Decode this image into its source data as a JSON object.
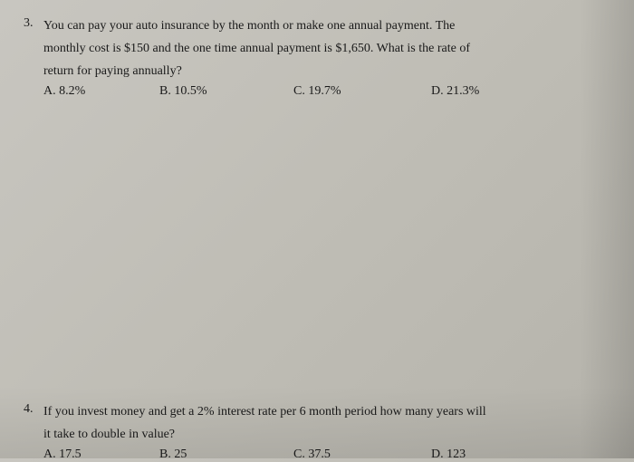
{
  "q3": {
    "number": "3.",
    "text_line1": "You can pay your auto insurance by the month or make one annual payment.  The",
    "text_line2": "monthly cost is $150 and the one time annual payment is $1,650.  What is the rate of",
    "text_line3": "return for paying annually?",
    "options": {
      "a": "A. 8.2%",
      "b": "B. 10.5%",
      "c": "C. 19.7%",
      "d": "D. 21.3%"
    }
  },
  "q4": {
    "number": "4.",
    "text_line1": "If you invest money and get a 2% interest rate per 6 month period how many years will",
    "text_line2": "it take to double in value?",
    "options": {
      "a": "A. 17.5",
      "b": "B. 25",
      "c": "C. 37.5",
      "d": "D. 123"
    }
  },
  "style": {
    "background": "#c2c0b8",
    "text_color": "#1a1a1a",
    "font_family": "Georgia, Times New Roman, serif",
    "question_fontsize": 14,
    "line_height": 1.5
  }
}
